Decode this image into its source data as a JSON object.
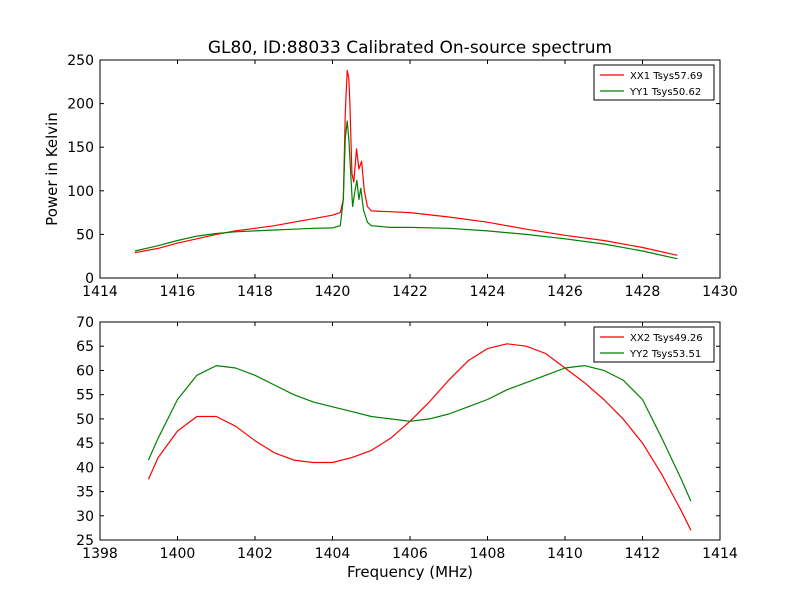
{
  "figure": {
    "title": "GL80, ID:88033 Calibrated On-source spectrum"
  },
  "chart_data": [
    {
      "type": "line",
      "title": "GL80, ID:88033 Calibrated On-source spectrum",
      "xlabel": "",
      "ylabel": "Power in Kelvin",
      "xlim": [
        1414,
        1430
      ],
      "ylim": [
        0,
        250
      ],
      "xticks": [
        1414,
        1416,
        1418,
        1420,
        1422,
        1424,
        1426,
        1428,
        1430
      ],
      "yticks": [
        0,
        50,
        100,
        150,
        200,
        250
      ],
      "legend_position": "top-right",
      "series": [
        {
          "name": "XX1 Tsys57.69",
          "color": "#ff0000",
          "points": [
            [
              1414.9,
              29
            ],
            [
              1415.5,
              34
            ],
            [
              1416,
              40
            ],
            [
              1416.5,
              45
            ],
            [
              1417,
              50
            ],
            [
              1417.5,
              54
            ],
            [
              1418,
              57
            ],
            [
              1418.5,
              60
            ],
            [
              1419,
              64
            ],
            [
              1419.5,
              68
            ],
            [
              1420,
              72
            ],
            [
              1420.2,
              75
            ],
            [
              1420.28,
              90
            ],
            [
              1420.33,
              190
            ],
            [
              1420.38,
              238
            ],
            [
              1420.42,
              229
            ],
            [
              1420.45,
              200
            ],
            [
              1420.5,
              120
            ],
            [
              1420.55,
              110
            ],
            [
              1420.62,
              148
            ],
            [
              1420.68,
              125
            ],
            [
              1420.75,
              134
            ],
            [
              1420.82,
              100
            ],
            [
              1420.9,
              82
            ],
            [
              1421,
              77
            ],
            [
              1421.5,
              76
            ],
            [
              1422,
              75
            ],
            [
              1423,
              70
            ],
            [
              1424,
              64
            ],
            [
              1425,
              56
            ],
            [
              1426,
              49
            ],
            [
              1427,
              43
            ],
            [
              1428,
              35
            ],
            [
              1428.9,
              26
            ]
          ]
        },
        {
          "name": "YY1 Tsys50.62",
          "color": "#008000",
          "points": [
            [
              1414.9,
              31
            ],
            [
              1415.5,
              37
            ],
            [
              1416,
              43
            ],
            [
              1416.5,
              48
            ],
            [
              1417,
              51
            ],
            [
              1417.5,
              53
            ],
            [
              1418,
              54
            ],
            [
              1418.5,
              55
            ],
            [
              1419,
              56
            ],
            [
              1419.5,
              57
            ],
            [
              1420,
              57.5
            ],
            [
              1420.2,
              60
            ],
            [
              1420.28,
              90
            ],
            [
              1420.33,
              160
            ],
            [
              1420.38,
              180
            ],
            [
              1420.42,
              160
            ],
            [
              1420.47,
              120
            ],
            [
              1420.52,
              82
            ],
            [
              1420.58,
              100
            ],
            [
              1420.63,
              112
            ],
            [
              1420.68,
              90
            ],
            [
              1420.73,
              103
            ],
            [
              1420.8,
              78
            ],
            [
              1420.9,
              64
            ],
            [
              1421,
              60
            ],
            [
              1421.5,
              58
            ],
            [
              1422,
              58
            ],
            [
              1423,
              57
            ],
            [
              1424,
              54
            ],
            [
              1425,
              50
            ],
            [
              1426,
              45
            ],
            [
              1427,
              39
            ],
            [
              1428,
              31
            ],
            [
              1428.9,
              22
            ]
          ]
        }
      ]
    },
    {
      "type": "line",
      "title": "",
      "xlabel": "Frequency (MHz)",
      "ylabel": "",
      "xlim": [
        1398,
        1414
      ],
      "ylim": [
        25,
        70
      ],
      "xticks": [
        1398,
        1400,
        1402,
        1404,
        1406,
        1408,
        1410,
        1412,
        1414
      ],
      "yticks": [
        25,
        30,
        35,
        40,
        45,
        50,
        55,
        60,
        65,
        70
      ],
      "legend_position": "top-right",
      "series": [
        {
          "name": "XX2 Tsys49.26",
          "color": "#ff0000",
          "points": [
            [
              1399.25,
              37.5
            ],
            [
              1399.5,
              42
            ],
            [
              1400,
              47.5
            ],
            [
              1400.5,
              50.5
            ],
            [
              1401,
              50.5
            ],
            [
              1401.5,
              48.5
            ],
            [
              1402,
              45.5
            ],
            [
              1402.5,
              43
            ],
            [
              1403,
              41.5
            ],
            [
              1403.5,
              41
            ],
            [
              1404,
              41
            ],
            [
              1404.5,
              42
            ],
            [
              1405,
              43.5
            ],
            [
              1405.5,
              46
            ],
            [
              1406,
              49.5
            ],
            [
              1406.5,
              53.5
            ],
            [
              1407,
              58
            ],
            [
              1407.5,
              62
            ],
            [
              1408,
              64.5
            ],
            [
              1408.5,
              65.5
            ],
            [
              1409,
              65
            ],
            [
              1409.5,
              63.5
            ],
            [
              1410,
              60.5
            ],
            [
              1410.5,
              57.5
            ],
            [
              1411,
              54
            ],
            [
              1411.5,
              50
            ],
            [
              1412,
              45
            ],
            [
              1412.5,
              38.5
            ],
            [
              1413,
              31
            ],
            [
              1413.25,
              27
            ]
          ]
        },
        {
          "name": "YY2 Tsys53.51",
          "color": "#008000",
          "points": [
            [
              1399.25,
              41.5
            ],
            [
              1399.5,
              46
            ],
            [
              1400,
              54
            ],
            [
              1400.5,
              59
            ],
            [
              1401,
              61
            ],
            [
              1401.5,
              60.5
            ],
            [
              1402,
              59
            ],
            [
              1402.5,
              57
            ],
            [
              1403,
              55
            ],
            [
              1403.5,
              53.5
            ],
            [
              1404,
              52.5
            ],
            [
              1404.5,
              51.5
            ],
            [
              1405,
              50.5
            ],
            [
              1405.5,
              50
            ],
            [
              1406,
              49.5
            ],
            [
              1406.5,
              50
            ],
            [
              1407,
              51
            ],
            [
              1407.5,
              52.5
            ],
            [
              1408,
              54
            ],
            [
              1408.5,
              56
            ],
            [
              1409,
              57.5
            ],
            [
              1409.5,
              59
            ],
            [
              1410,
              60.5
            ],
            [
              1410.5,
              61
            ],
            [
              1411,
              60
            ],
            [
              1411.5,
              58
            ],
            [
              1412,
              54
            ],
            [
              1412.5,
              46
            ],
            [
              1413,
              37.5
            ],
            [
              1413.25,
              33
            ]
          ]
        }
      ]
    }
  ]
}
